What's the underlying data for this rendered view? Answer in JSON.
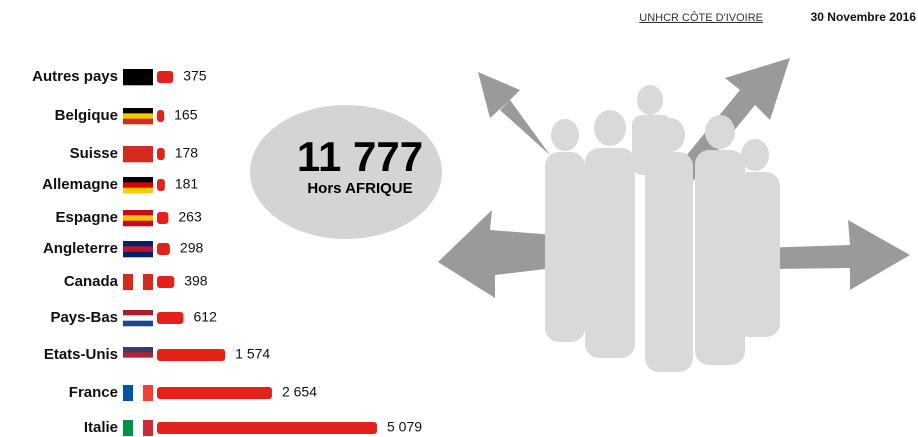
{
  "header": {
    "source": "UNHCR CÔTE D'IVOIRE",
    "date": "30 Novembre 2016"
  },
  "chart_data": {
    "type": "hbar",
    "categories": [
      "Autres pays",
      "Belgique",
      "Suisse",
      "Allemagne",
      "Espagne",
      "Angleterre",
      "Canada",
      "Pays-Bas",
      "Etats-Unis",
      "France",
      "Italie"
    ],
    "values": [
      375,
      165,
      178,
      181,
      263,
      298,
      398,
      612,
      1574,
      2654,
      5079
    ],
    "value_labels": [
      "375",
      "165",
      "178",
      "181",
      "263",
      "298",
      "398",
      "612",
      "1 574",
      "2 654",
      "5 079"
    ],
    "color": "#e3231b",
    "annotations": [
      "11 777",
      "Hors AFRIQUE"
    ]
  }
}
